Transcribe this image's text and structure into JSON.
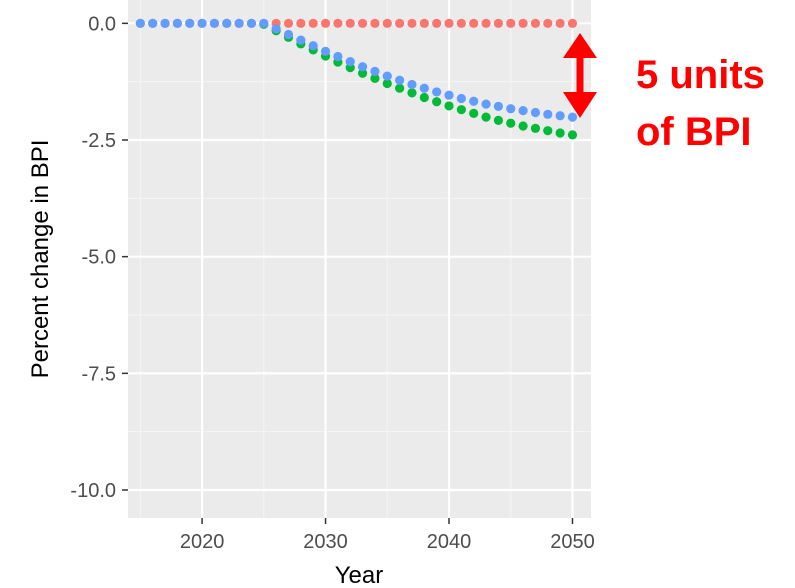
{
  "chart_data": {
    "type": "scatter",
    "xlabel": "Year",
    "ylabel": "Percent change in BPI",
    "xlim": [
      2014,
      2051.5
    ],
    "ylim": [
      -10.6,
      0.5
    ],
    "x_ticks": [
      {
        "value": 2020,
        "label": "2020"
      },
      {
        "value": 2030,
        "label": "2030"
      },
      {
        "value": 2040,
        "label": "2040"
      },
      {
        "value": 2050,
        "label": "2050"
      }
    ],
    "y_ticks": [
      {
        "value": 0.0,
        "label": "0.0"
      },
      {
        "value": -2.5,
        "label": "-2.5"
      },
      {
        "value": -5.0,
        "label": "-5.0"
      },
      {
        "value": -7.5,
        "label": "-7.5"
      },
      {
        "value": -10.0,
        "label": "-10.0"
      }
    ],
    "grid": true,
    "background": "#ebebeb",
    "x": [
      2015,
      2016,
      2017,
      2018,
      2019,
      2020,
      2021,
      2022,
      2023,
      2024,
      2025,
      2026,
      2027,
      2028,
      2029,
      2030,
      2031,
      2032,
      2033,
      2034,
      2035,
      2036,
      2037,
      2038,
      2039,
      2040,
      2041,
      2042,
      2043,
      2044,
      2045,
      2046,
      2047,
      2048,
      2049,
      2050
    ],
    "series": [
      {
        "color": "#f8766d",
        "values": [
          0,
          0,
          0,
          0,
          0,
          0,
          0,
          0,
          0,
          0,
          0,
          0,
          0,
          0,
          0,
          0,
          0,
          0,
          0,
          0,
          0,
          0,
          0,
          0,
          0,
          0,
          0,
          0,
          0,
          0,
          0,
          0,
          0,
          0,
          0,
          0
        ]
      },
      {
        "color": "#00ba38",
        "values": [
          null,
          null,
          null,
          null,
          null,
          null,
          null,
          null,
          null,
          null,
          -0.02,
          -0.16,
          -0.3,
          -0.44,
          -0.57,
          -0.7,
          -0.83,
          -0.95,
          -1.07,
          -1.18,
          -1.29,
          -1.39,
          -1.49,
          -1.59,
          -1.68,
          -1.77,
          -1.85,
          -1.93,
          -2.01,
          -2.08,
          -2.14,
          -2.2,
          -2.25,
          -2.3,
          -2.35,
          -2.39
        ]
      },
      {
        "color": "#619cff",
        "values": [
          0,
          0,
          0,
          0,
          0,
          0,
          0,
          0,
          0,
          0,
          0,
          -0.12,
          -0.24,
          -0.36,
          -0.48,
          -0.6,
          -0.71,
          -0.82,
          -0.93,
          -1.03,
          -1.13,
          -1.22,
          -1.31,
          -1.39,
          -1.47,
          -1.54,
          -1.61,
          -1.67,
          -1.73,
          -1.78,
          -1.83,
          -1.87,
          -1.91,
          -1.95,
          -1.98,
          -2.01
        ]
      }
    ],
    "annotation": {
      "lines": [
        "5 units",
        "of BPI"
      ],
      "arrow_color": "#ff0000"
    }
  }
}
